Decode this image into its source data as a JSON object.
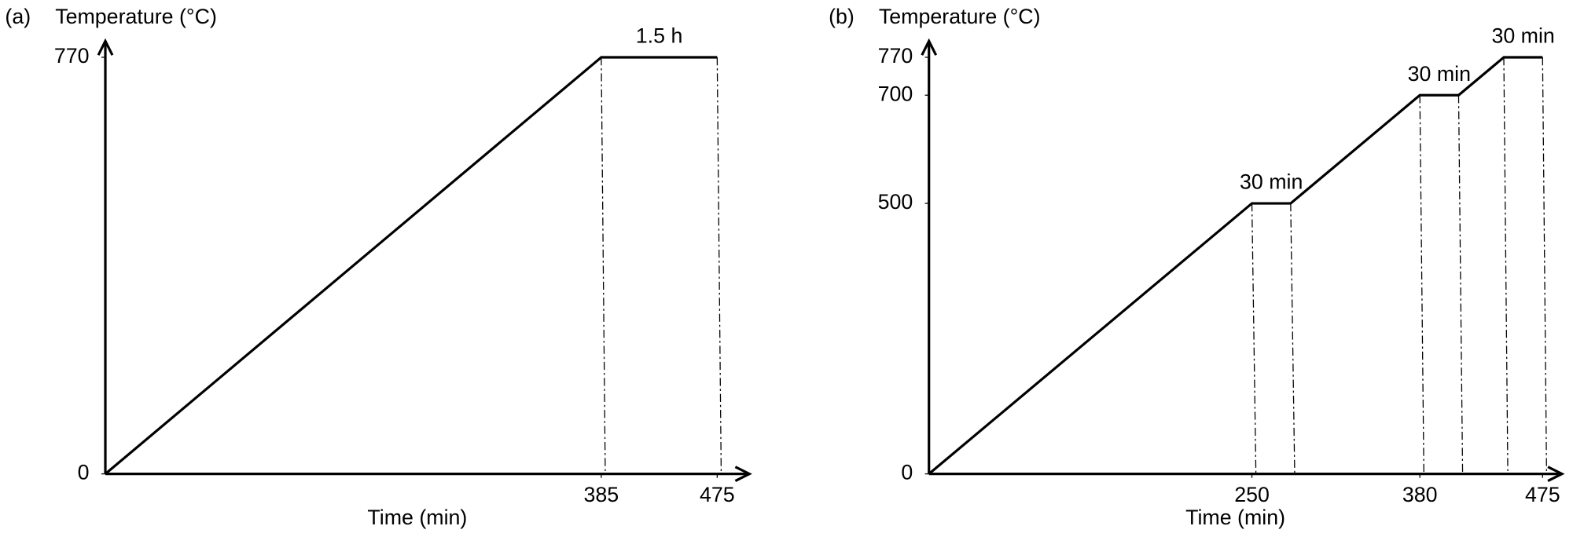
{
  "chart_data": [
    {
      "type": "line",
      "panel_label": "(a)",
      "y_label": "Temperature (°C)",
      "x_label": "Time (min)",
      "x": [
        0,
        385,
        475
      ],
      "series": [
        {
          "values": [
            0,
            770,
            770
          ],
          "color": "#000000"
        }
      ],
      "xlim": [
        0,
        500
      ],
      "ylim": [
        0,
        800
      ],
      "xticks": [
        385,
        475
      ],
      "yticks": [
        0,
        770
      ],
      "annotations": [
        "1.5 h"
      ]
    },
    {
      "type": "line",
      "panel_label": "(b)",
      "y_label": "Temperature (°C)",
      "x_label": "Time (min)",
      "x": [
        0,
        250,
        280,
        380,
        410,
        445,
        475
      ],
      "series": [
        {
          "values": [
            0,
            500,
            500,
            700,
            700,
            770,
            770
          ],
          "color": "#000000"
        }
      ],
      "xlim": [
        0,
        490
      ],
      "ylim": [
        0,
        800
      ],
      "xticks": [
        250,
        380,
        475
      ],
      "yticks": [
        0,
        500,
        700,
        770
      ],
      "annotations": [
        "30 min",
        "30 min",
        "30 min"
      ]
    }
  ]
}
